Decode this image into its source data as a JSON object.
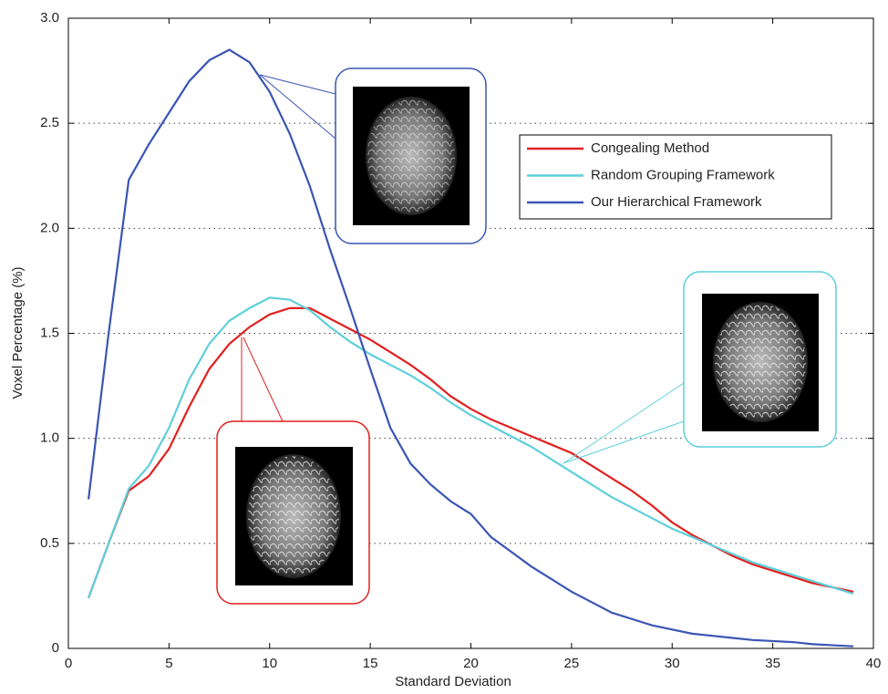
{
  "chart_data": {
    "type": "line",
    "xlabel": "Standard Deviation",
    "ylabel": "Voxel Percentage (%)",
    "x": [
      1,
      2,
      3,
      4,
      5,
      6,
      7,
      8,
      9,
      10,
      11,
      12,
      13,
      14,
      15,
      16,
      17,
      18,
      19,
      20,
      21,
      22,
      23,
      24,
      25,
      26,
      27,
      28,
      29,
      30,
      31,
      32,
      33,
      34,
      35,
      36,
      37,
      38,
      39
    ],
    "series": [
      {
        "name": "Congealing Method",
        "color": "#e0211f",
        "values": [
          0.24,
          0.5,
          0.75,
          0.82,
          0.95,
          1.15,
          1.33,
          1.45,
          1.53,
          1.59,
          1.62,
          1.62,
          1.57,
          1.52,
          1.47,
          1.41,
          1.35,
          1.28,
          1.2,
          1.14,
          1.09,
          1.05,
          1.01,
          0.97,
          0.93,
          0.87,
          0.81,
          0.75,
          0.68,
          0.6,
          0.54,
          0.49,
          0.44,
          0.4,
          0.37,
          0.34,
          0.31,
          0.29,
          0.27
        ]
      },
      {
        "name": "Random Grouping Framework",
        "color": "#5ecfdc",
        "values": [
          0.24,
          0.5,
          0.76,
          0.87,
          1.05,
          1.28,
          1.45,
          1.56,
          1.62,
          1.67,
          1.66,
          1.61,
          1.53,
          1.46,
          1.4,
          1.35,
          1.3,
          1.24,
          1.17,
          1.11,
          1.06,
          1.01,
          0.96,
          0.9,
          0.84,
          0.78,
          0.72,
          0.67,
          0.62,
          0.57,
          0.53,
          0.49,
          0.45,
          0.41,
          0.38,
          0.35,
          0.32,
          0.29,
          0.26
        ]
      },
      {
        "name": "Our Hierarchical Framework",
        "color": "#3a55b4",
        "values": [
          0.71,
          1.5,
          2.23,
          2.4,
          2.55,
          2.7,
          2.8,
          2.85,
          2.79,
          2.65,
          2.45,
          2.2,
          1.9,
          1.62,
          1.33,
          1.05,
          0.88,
          0.78,
          0.7,
          0.64,
          0.53,
          0.46,
          0.39,
          0.33,
          0.27,
          0.22,
          0.17,
          0.14,
          0.11,
          0.09,
          0.07,
          0.06,
          0.05,
          0.04,
          0.035,
          0.03,
          0.02,
          0.015,
          0.01
        ]
      }
    ],
    "xlim": [
      0,
      40
    ],
    "xticks": [
      0,
      5,
      10,
      15,
      20,
      25,
      30,
      35,
      40
    ],
    "ylim": [
      0,
      3
    ],
    "yticks": [
      0,
      0.5,
      {
        "value": 1,
        "label": "1.0"
      },
      1.5,
      {
        "value": 2,
        "label": "2.0"
      },
      2.5,
      {
        "value": 3,
        "label": "3.0"
      }
    ],
    "grid": true,
    "legend": "upper right"
  }
}
